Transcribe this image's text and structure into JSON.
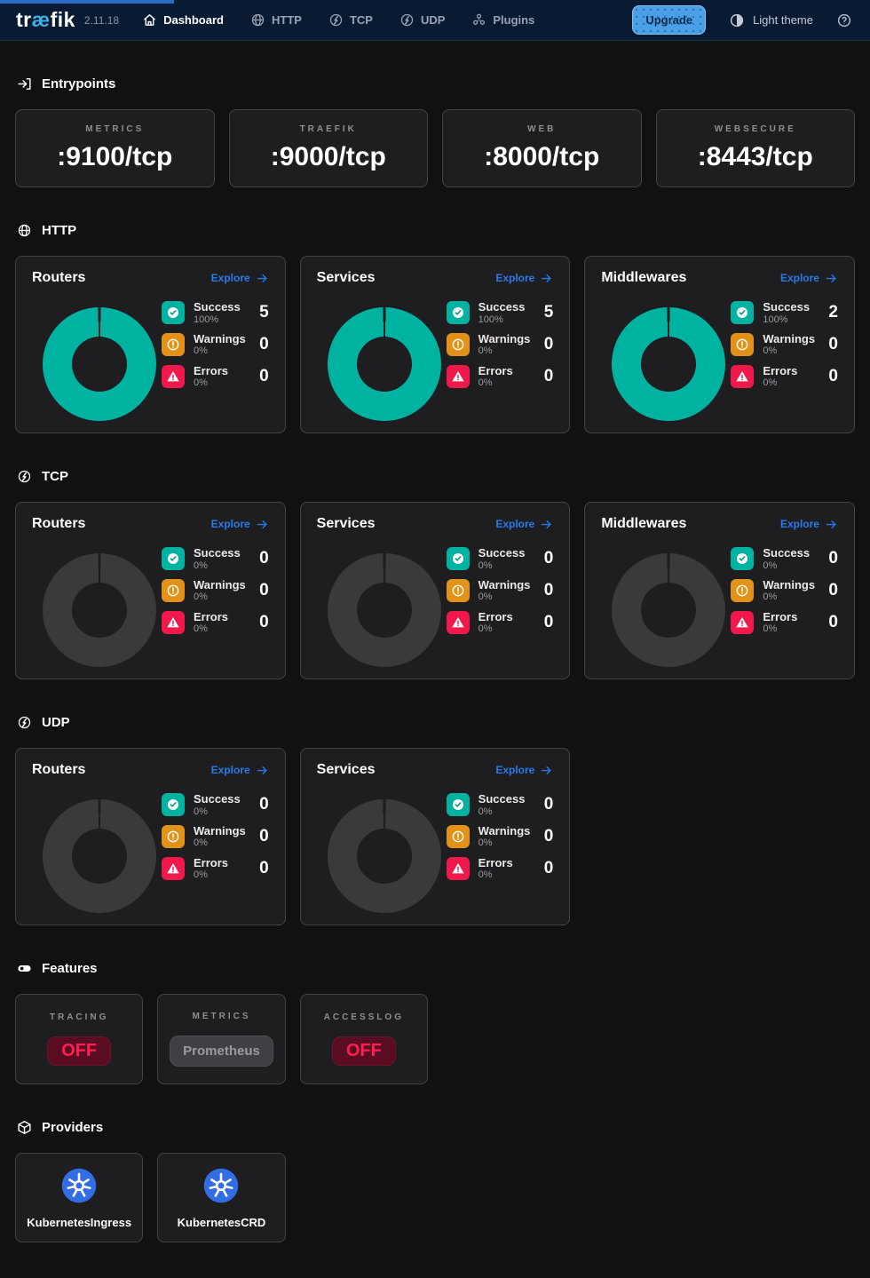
{
  "colors": {
    "accent_blue": "#2a7aea",
    "progress_blue": "#2a6bc8",
    "success_teal": "#00b2a0",
    "warning_orange": "#e39219",
    "error_red": "#f1184c",
    "donut_empty": "#3a3a3c",
    "card_bg": "#1e1e20",
    "upgrade_bg": "#4aa0e8",
    "kubernetes_blue": "#326de4"
  },
  "navbar": {
    "logo_pre": "tr",
    "logo_ae": "æ",
    "logo_post": "fik",
    "version": "2.11.18",
    "items": [
      {
        "label": "Dashboard",
        "icon": "home-icon",
        "active": true
      },
      {
        "label": "HTTP",
        "icon": "globe-icon",
        "active": false
      },
      {
        "label": "TCP",
        "icon": "tcp-icon",
        "active": false
      },
      {
        "label": "UDP",
        "icon": "udp-icon",
        "active": false
      },
      {
        "label": "Plugins",
        "icon": "plugins-icon",
        "active": false
      }
    ],
    "upgrade_label": "Upgrade",
    "theme_label": "Light theme"
  },
  "entrypoints": {
    "title": "Entrypoints",
    "cards": [
      {
        "label": "METRICS",
        "value": ":9100/tcp"
      },
      {
        "label": "TRAEFIK",
        "value": ":9000/tcp"
      },
      {
        "label": "WEB",
        "value": ":8000/tcp"
      },
      {
        "label": "WEBSECURE",
        "value": ":8443/tcp"
      }
    ]
  },
  "chart_sections": [
    {
      "id": "http",
      "title": "HTTP",
      "icon": "globe-icon",
      "cards": [
        {
          "title": "Routers",
          "explore_label": "Explore",
          "filled": true,
          "legend": [
            {
              "type": "success",
              "label": "Success",
              "pct": "100%",
              "value": "5"
            },
            {
              "type": "warning",
              "label": "Warnings",
              "pct": "0%",
              "value": "0"
            },
            {
              "type": "error",
              "label": "Errors",
              "pct": "0%",
              "value": "0"
            }
          ]
        },
        {
          "title": "Services",
          "explore_label": "Explore",
          "filled": true,
          "legend": [
            {
              "type": "success",
              "label": "Success",
              "pct": "100%",
              "value": "5"
            },
            {
              "type": "warning",
              "label": "Warnings",
              "pct": "0%",
              "value": "0"
            },
            {
              "type": "error",
              "label": "Errors",
              "pct": "0%",
              "value": "0"
            }
          ]
        },
        {
          "title": "Middlewares",
          "explore_label": "Explore",
          "filled": true,
          "legend": [
            {
              "type": "success",
              "label": "Success",
              "pct": "100%",
              "value": "2"
            },
            {
              "type": "warning",
              "label": "Warnings",
              "pct": "0%",
              "value": "0"
            },
            {
              "type": "error",
              "label": "Errors",
              "pct": "0%",
              "value": "0"
            }
          ]
        }
      ]
    },
    {
      "id": "tcp",
      "title": "TCP",
      "icon": "tcp-icon",
      "cards": [
        {
          "title": "Routers",
          "explore_label": "Explore",
          "filled": false,
          "legend": [
            {
              "type": "success",
              "label": "Success",
              "pct": "0%",
              "value": "0"
            },
            {
              "type": "warning",
              "label": "Warnings",
              "pct": "0%",
              "value": "0"
            },
            {
              "type": "error",
              "label": "Errors",
              "pct": "0%",
              "value": "0"
            }
          ]
        },
        {
          "title": "Services",
          "explore_label": "Explore",
          "filled": false,
          "legend": [
            {
              "type": "success",
              "label": "Success",
              "pct": "0%",
              "value": "0"
            },
            {
              "type": "warning",
              "label": "Warnings",
              "pct": "0%",
              "value": "0"
            },
            {
              "type": "error",
              "label": "Errors",
              "pct": "0%",
              "value": "0"
            }
          ]
        },
        {
          "title": "Middlewares",
          "explore_label": "Explore",
          "filled": false,
          "legend": [
            {
              "type": "success",
              "label": "Success",
              "pct": "0%",
              "value": "0"
            },
            {
              "type": "warning",
              "label": "Warnings",
              "pct": "0%",
              "value": "0"
            },
            {
              "type": "error",
              "label": "Errors",
              "pct": "0%",
              "value": "0"
            }
          ]
        }
      ]
    },
    {
      "id": "udp",
      "title": "UDP",
      "icon": "udp-icon",
      "cards": [
        {
          "title": "Routers",
          "explore_label": "Explore",
          "filled": false,
          "legend": [
            {
              "type": "success",
              "label": "Success",
              "pct": "0%",
              "value": "0"
            },
            {
              "type": "warning",
              "label": "Warnings",
              "pct": "0%",
              "value": "0"
            },
            {
              "type": "error",
              "label": "Errors",
              "pct": "0%",
              "value": "0"
            }
          ]
        },
        {
          "title": "Services",
          "explore_label": "Explore",
          "filled": false,
          "legend": [
            {
              "type": "success",
              "label": "Success",
              "pct": "0%",
              "value": "0"
            },
            {
              "type": "warning",
              "label": "Warnings",
              "pct": "0%",
              "value": "0"
            },
            {
              "type": "error",
              "label": "Errors",
              "pct": "0%",
              "value": "0"
            }
          ]
        }
      ]
    }
  ],
  "features": {
    "title": "Features",
    "cards": [
      {
        "label": "TRACING",
        "value": "OFF",
        "style": "off"
      },
      {
        "label": "METRICS",
        "value": "Prometheus",
        "style": "neutral"
      },
      {
        "label": "ACCESSLOG",
        "value": "OFF",
        "style": "off"
      }
    ]
  },
  "providers": {
    "title": "Providers",
    "cards": [
      {
        "name": "KubernetesIngress",
        "icon": "kubernetes-icon"
      },
      {
        "name": "KubernetesCRD",
        "icon": "kubernetes-icon"
      }
    ]
  }
}
